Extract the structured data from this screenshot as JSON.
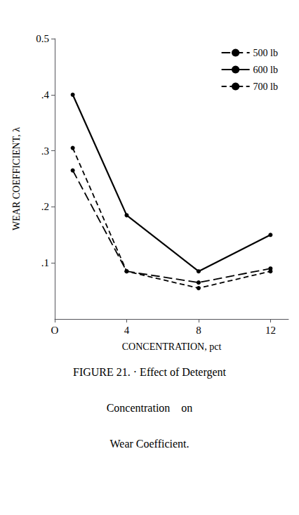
{
  "chart_data": {
    "type": "line",
    "x": [
      1,
      4,
      8,
      12
    ],
    "series": [
      {
        "name": "500 lb",
        "color": "#000000",
        "line_style": "long_dash",
        "marker": "circle",
        "values": [
          0.265,
          0.085,
          0.065,
          0.09
        ]
      },
      {
        "name": "600 lb",
        "color": "#000000",
        "line_style": "solid",
        "marker": "circle",
        "values": [
          0.4,
          0.185,
          0.085,
          0.15
        ]
      },
      {
        "name": "700 lb",
        "color": "#000000",
        "line_style": "short_dash",
        "marker": "circle",
        "values": [
          0.305,
          0.085,
          0.055,
          0.085
        ]
      }
    ],
    "xlim": [
      0,
      13
    ],
    "ylim": [
      0,
      0.5
    ],
    "xticks": [
      {
        "value": 0,
        "label": "O"
      },
      4,
      8,
      12
    ],
    "yticks": [
      {
        "value": 0.1,
        "label": ".1"
      },
      {
        "value": 0.2,
        "label": ".2"
      },
      {
        "value": 0.3,
        "label": ".3"
      },
      {
        "value": 0.4,
        "label": ".4"
      },
      {
        "value": 0.5,
        "label": "0.5"
      }
    ],
    "xlabel": "CONCENTRATION, pct",
    "ylabel": "WEAR COEFFICIENT, λ",
    "annotations": [
      "FIGURE 21. · Effect of Detergent",
      "Concentration    on",
      "Wear Coefficient."
    ],
    "legend": "upper right",
    "grid": false
  }
}
